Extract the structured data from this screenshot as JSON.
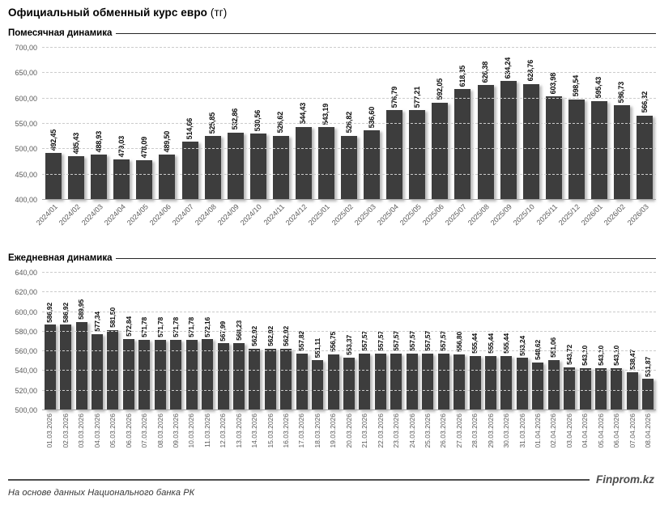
{
  "page": {
    "title": "Официальный обменный курс евро",
    "title_unit": "(тг)",
    "footer_source": "На основе данных Национального банка РК",
    "footer_brand": "Finprom.kz"
  },
  "chart_data": [
    {
      "type": "bar",
      "title": "Помесячная динамика",
      "xlabel": "",
      "ylabel": "",
      "ylim": [
        400,
        700
      ],
      "ytick_step": 50,
      "grid": true,
      "legend": "none",
      "bar_color": "#3d3d3d",
      "axis_label_color": "#595959",
      "decimal_separator": ",",
      "value_label_rotation": -90,
      "xtick_rotation": -45,
      "categories": [
        "2024/01",
        "2024/02",
        "2024/03",
        "2024/04",
        "2024/05",
        "2024/06",
        "2024/07",
        "2024/08",
        "2024/09",
        "2024/10",
        "2024/11",
        "2024/12",
        "2025/01",
        "2025/02",
        "2025/03",
        "2025/04",
        "2025/05",
        "2025/06",
        "2025/07",
        "2025/08",
        "2025/09",
        "2025/10",
        "2025/11",
        "2025/12",
        "2026/01",
        "2026/02",
        "2026/03"
      ],
      "values": [
        492.45,
        485.43,
        488.93,
        479.03,
        478.09,
        489.5,
        514.66,
        525.85,
        532.86,
        530.56,
        526.62,
        544.43,
        543.19,
        526.82,
        536.6,
        576.79,
        577.21,
        592.05,
        618.35,
        626.38,
        634.24,
        628.76,
        603.98,
        598.54,
        595.43,
        586.73,
        566.32
      ]
    },
    {
      "type": "bar",
      "title": "Ежедневная динамика",
      "xlabel": "",
      "ylabel": "",
      "ylim": [
        500,
        640
      ],
      "ytick_step": 20,
      "grid": true,
      "legend": "none",
      "bar_color": "#3d3d3d",
      "axis_label_color": "#595959",
      "decimal_separator": ",",
      "value_label_rotation": -90,
      "xtick_rotation": -90,
      "categories": [
        "01.03.2026",
        "02.03.2026",
        "03.03.2026",
        "04.03.2026",
        "05.03.2026",
        "06.03.2026",
        "07.03.2026",
        "08.03.2026",
        "09.03.2026",
        "10.03.2026",
        "11.03.2026",
        "12.03.2026",
        "13.03.2026",
        "14.03.2026",
        "15.03.2026",
        "16.03.2026",
        "17.03.2026",
        "18.03.2026",
        "19.03.2026",
        "20.03.2026",
        "21.03.2026",
        "22.03.2026",
        "23.03.2026",
        "24.03.2026",
        "25.03.2026",
        "26.03.2026",
        "27.03.2026",
        "28.03.2026",
        "29.03.2026",
        "30.03.2026",
        "31.03.2026",
        "01.04.2026",
        "02.04.2026",
        "03.04.2026",
        "04.04.2026",
        "05.04.2026",
        "06.04.2026",
        "07.04.2026",
        "08.04.2026"
      ],
      "values": [
        586.92,
        586.92,
        589.95,
        577.34,
        581.5,
        572.84,
        571.78,
        571.78,
        571.78,
        571.78,
        572.16,
        567.99,
        568.23,
        562.92,
        562.92,
        562.92,
        557.82,
        551.11,
        556.75,
        553.37,
        557.57,
        557.57,
        557.57,
        557.57,
        557.57,
        557.57,
        556.8,
        555.44,
        555.44,
        555.44,
        553.24,
        548.62,
        551.06,
        543.72,
        543.1,
        543.1,
        543.1,
        538.47,
        531.87
      ]
    }
  ]
}
